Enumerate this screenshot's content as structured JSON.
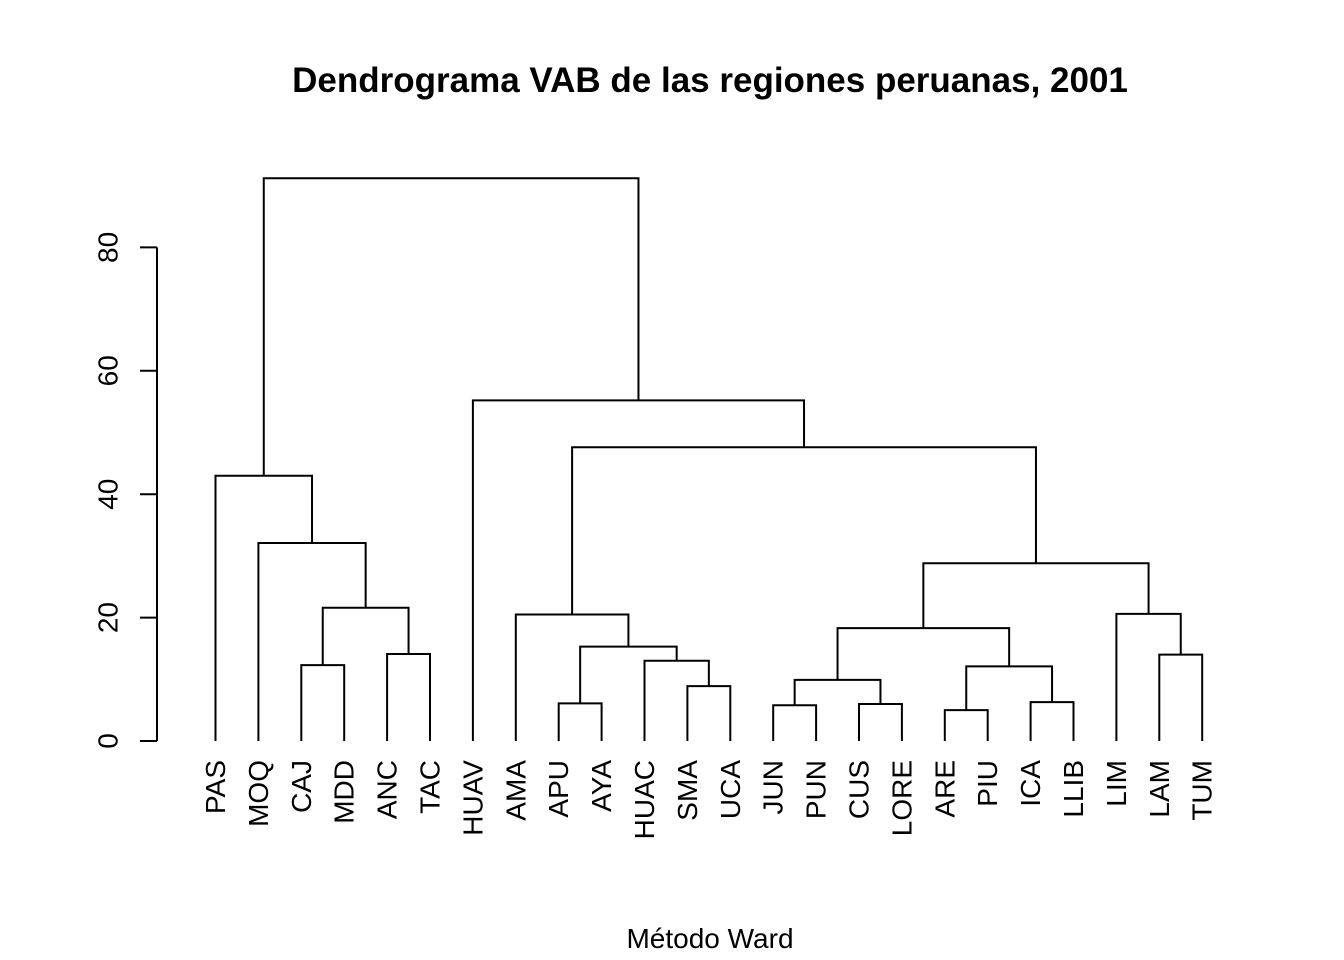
{
  "chart_data": {
    "type": "dendrogram",
    "title": "Dendrograma VAB de las regiones peruanas, 2001",
    "xlabel": "Método Ward",
    "ylabel": "",
    "ylim": [
      0,
      90
    ],
    "yticks": [
      0,
      20,
      40,
      60,
      80
    ],
    "leaves": [
      "PAS",
      "MOQ",
      "CAJ",
      "MDD",
      "ANC",
      "TAC",
      "HUAV",
      "AMA",
      "APU",
      "AYA",
      "HUAC",
      "SMA",
      "UCA",
      "JUN",
      "PUN",
      "CUS",
      "LORE",
      "ARE",
      "PIU",
      "ICA",
      "LLIB",
      "LIM",
      "LAM",
      "TUM"
    ],
    "merges": [
      {
        "left": "CAJ",
        "right": "MDD",
        "height": 12.3
      },
      {
        "left": "ANC",
        "right": "TAC",
        "height": 14.1
      },
      {
        "left": "c1",
        "right": "c2",
        "height": 21.6
      },
      {
        "left": "MOQ",
        "right": "c3",
        "height": 32.1
      },
      {
        "left": "PAS",
        "right": "c4",
        "height": 43.0
      },
      {
        "left": "APU",
        "right": "AYA",
        "height": 6.1
      },
      {
        "left": "SMA",
        "right": "UCA",
        "height": 8.9
      },
      {
        "left": "HUAC",
        "right": "c7",
        "height": 13.0
      },
      {
        "left": "c6",
        "right": "c8",
        "height": 15.3
      },
      {
        "left": "AMA",
        "right": "c9",
        "height": 20.5
      },
      {
        "left": "JUN",
        "right": "PUN",
        "height": 5.8
      },
      {
        "left": "CUS",
        "right": "LORE",
        "height": 6.0
      },
      {
        "left": "c11",
        "right": "c12",
        "height": 9.9
      },
      {
        "left": "ARE",
        "right": "PIU",
        "height": 5.0
      },
      {
        "left": "ICA",
        "right": "LLIB",
        "height": 6.3
      },
      {
        "left": "c14",
        "right": "c15",
        "height": 12.1
      },
      {
        "left": "c13",
        "right": "c16",
        "height": 18.3
      },
      {
        "left": "LAM",
        "right": "TUM",
        "height": 14.0
      },
      {
        "left": "LIM",
        "right": "c18",
        "height": 20.6
      },
      {
        "left": "c17",
        "right": "c19",
        "height": 28.8
      },
      {
        "left": "c10",
        "right": "c20",
        "height": 47.6
      },
      {
        "left": "HUAV",
        "right": "c21",
        "height": 55.2
      },
      {
        "left": "c5",
        "right": "c22",
        "height": 91.2
      }
    ]
  }
}
